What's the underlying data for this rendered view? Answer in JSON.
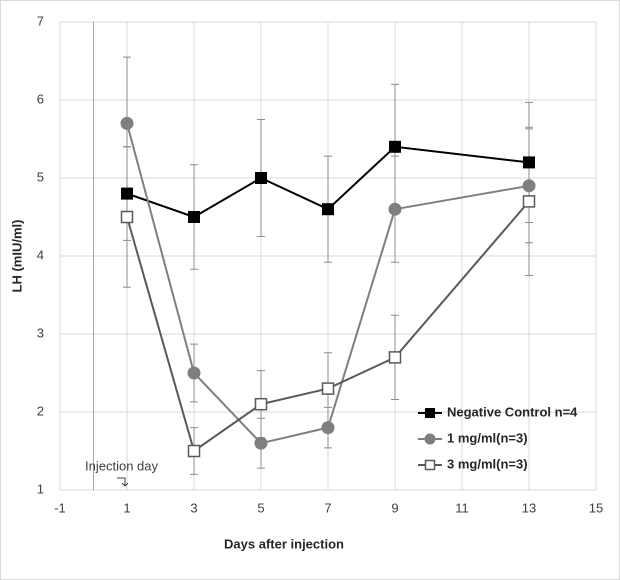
{
  "chart_data": {
    "type": "line",
    "x_label": "Days after injection",
    "y_label": "LH (mIU/ml)",
    "annotation": "Injection day",
    "x": [
      1,
      3,
      5,
      7,
      9,
      13
    ],
    "series": [
      {
        "name": "Negative Control n=4",
        "color": "#000000",
        "marker": "square",
        "values": [
          4.8,
          4.5,
          5.0,
          4.6,
          5.4,
          5.2
        ],
        "errors": [
          0.6,
          0.67,
          0.75,
          0.68,
          0.8,
          0.77
        ]
      },
      {
        "name": "1 mg/ml(n=3)",
        "color": "#7f7f7f",
        "marker": "circle",
        "values": [
          5.7,
          2.5,
          1.6,
          1.8,
          4.6,
          4.9
        ],
        "errors": [
          0.85,
          0.37,
          0.32,
          0.26,
          0.68,
          0.73
        ]
      },
      {
        "name": "3 mg/ml(n=3)",
        "color": "#595959",
        "marker": "square-open",
        "values": [
          4.5,
          1.5,
          2.1,
          2.3,
          2.7,
          4.7
        ],
        "errors": [
          0.9,
          0.3,
          0.43,
          0.46,
          0.54,
          0.95
        ]
      }
    ],
    "xlim": [
      -1,
      15
    ],
    "xticks": [
      -1,
      1,
      3,
      5,
      7,
      9,
      11,
      13,
      15
    ],
    "ylim": [
      1,
      7
    ],
    "yticks": [
      1,
      2,
      3,
      4,
      5,
      6,
      7
    ],
    "grid": true,
    "legend": "right"
  }
}
